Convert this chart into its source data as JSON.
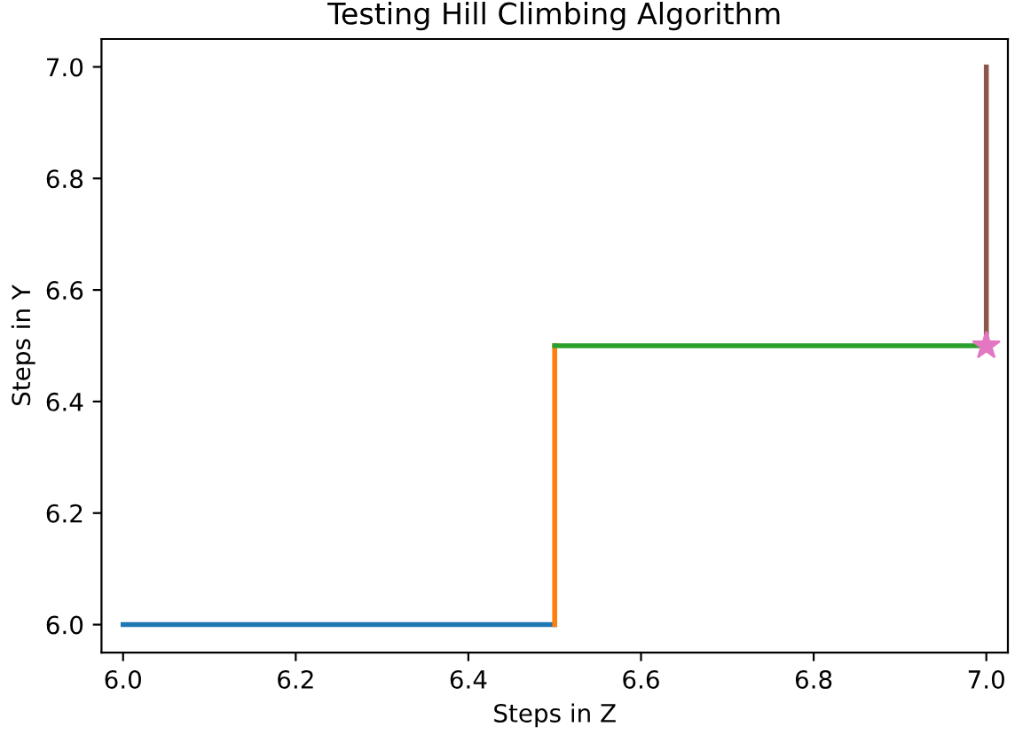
{
  "chart_data": {
    "type": "line",
    "title": "Testing Hill Climbing Algorithm",
    "xlabel": "Steps in Z",
    "ylabel": "Steps in Y",
    "series": [
      {
        "color": "#1f77b4",
        "x": [
          6.0,
          6.5
        ],
        "values": [
          6.0,
          6.0
        ]
      },
      {
        "color": "#ff7f0e",
        "x": [
          6.5,
          6.5
        ],
        "values": [
          6.0,
          6.5
        ]
      },
      {
        "color": "#2ca02c",
        "x": [
          6.5,
          7.0
        ],
        "values": [
          6.5,
          6.5
        ]
      },
      {
        "color": "#8c564b",
        "x": [
          7.0,
          7.0
        ],
        "values": [
          6.5,
          7.0
        ]
      },
      {
        "type": "scatter",
        "marker": "star",
        "color": "#e377c2",
        "x": [
          7.0
        ],
        "values": [
          6.5
        ]
      }
    ],
    "xlim": [
      5.975,
      7.025
    ],
    "ylim": [
      5.95,
      7.05
    ],
    "xticks": [
      {
        "value": 6,
        "label": "6.0"
      },
      6.2,
      6.4,
      6.6,
      6.8,
      {
        "value": 7,
        "label": "7.0"
      }
    ],
    "yticks": [
      {
        "value": 6,
        "label": "6.0"
      },
      6.2,
      6.4,
      6.6,
      6.8,
      {
        "value": 7,
        "label": "7.0"
      }
    ],
    "grid": false,
    "legend": false
  }
}
